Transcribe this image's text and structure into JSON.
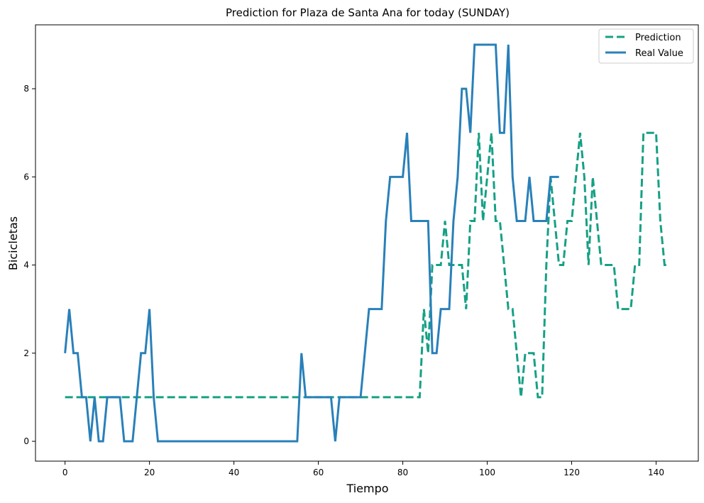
{
  "chart_data": {
    "type": "line",
    "title": "Prediction for Plaza de Santa Ana for today (SUNDAY)",
    "xlabel": "Tiempo",
    "ylabel": "Bicicletas",
    "xlim": [
      -7,
      150
    ],
    "ylim": [
      -0.45,
      9.45
    ],
    "xticks": [
      0,
      20,
      40,
      60,
      80,
      100,
      120,
      140
    ],
    "yticks": [
      0,
      2,
      4,
      6,
      8
    ],
    "grid": false,
    "legend_position": "top-right",
    "series": [
      {
        "name": "Prediction",
        "style": "dashed",
        "color": "#16a085",
        "values": [
          1,
          1,
          1,
          1,
          1,
          1,
          1,
          1,
          1,
          1,
          1,
          1,
          1,
          1,
          1,
          1,
          1,
          1,
          1,
          1,
          1,
          1,
          1,
          1,
          1,
          1,
          1,
          1,
          1,
          1,
          1,
          1,
          1,
          1,
          1,
          1,
          1,
          1,
          1,
          1,
          1,
          1,
          1,
          1,
          1,
          1,
          1,
          1,
          1,
          1,
          1,
          1,
          1,
          1,
          1,
          1,
          1,
          1,
          1,
          1,
          1,
          1,
          1,
          1,
          1,
          1,
          1,
          1,
          1,
          1,
          1,
          1,
          1,
          1,
          1,
          1,
          1,
          1,
          1,
          1,
          1,
          1,
          1,
          1,
          1,
          3,
          2,
          4,
          4,
          4,
          5,
          4,
          4,
          4,
          4,
          3,
          5,
          5,
          7,
          5,
          6,
          7,
          5,
          5,
          4,
          3,
          3,
          2,
          1,
          2,
          2,
          2,
          1,
          1,
          4,
          6,
          5,
          4,
          4,
          5,
          5,
          6,
          7,
          6,
          4,
          6,
          5,
          4,
          4,
          4,
          4,
          3,
          3,
          3,
          3,
          4,
          4,
          7,
          7,
          7,
          7,
          5,
          4,
          4
        ]
      },
      {
        "name": "Real Value",
        "style": "solid",
        "color": "#2980b9",
        "values": [
          2,
          3,
          2,
          2,
          1,
          1,
          0,
          1,
          0,
          0,
          1,
          1,
          1,
          1,
          0,
          0,
          0,
          1,
          2,
          2,
          3,
          1,
          0,
          0,
          0,
          0,
          0,
          0,
          0,
          0,
          0,
          0,
          0,
          0,
          0,
          0,
          0,
          0,
          0,
          0,
          0,
          0,
          0,
          0,
          0,
          0,
          0,
          0,
          0,
          0,
          0,
          0,
          0,
          0,
          0,
          0,
          2,
          1,
          1,
          1,
          1,
          1,
          1,
          1,
          0,
          1,
          1,
          1,
          1,
          1,
          1,
          2,
          3,
          3,
          3,
          3,
          5,
          6,
          6,
          6,
          6,
          7,
          5,
          5,
          5,
          5,
          5,
          2,
          2,
          3,
          3,
          3,
          5,
          6,
          8,
          8,
          7,
          9,
          9,
          9,
          9,
          9,
          9,
          7,
          7,
          9,
          6,
          5,
          5,
          5,
          6,
          5,
          5,
          5,
          5,
          6,
          6,
          6
        ]
      }
    ]
  }
}
